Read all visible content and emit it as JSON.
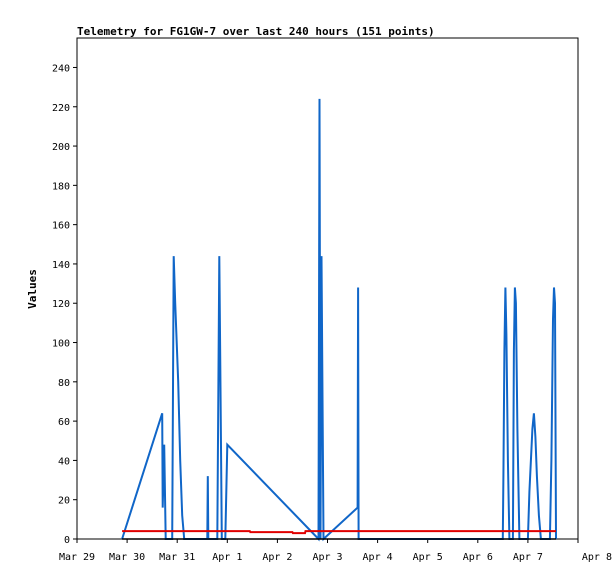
{
  "chart_data": {
    "type": "line",
    "title": "Telemetry for FG1GW-7 over last 240 hours (151 points)",
    "xlabel": "",
    "ylabel": "Values",
    "x_tick_labels": [
      "Mar 29",
      "Mar 30",
      "Mar 31",
      "Apr 1",
      "Apr 2",
      "Apr 3",
      "Apr 4",
      "Apr 5",
      "Apr 6",
      "Apr 7",
      "Apr 8"
    ],
    "xlim_days": [
      0,
      10
    ],
    "ylim": [
      0,
      255
    ],
    "y_ticks": [
      0,
      20,
      40,
      60,
      80,
      100,
      120,
      140,
      160,
      180,
      200,
      220,
      240
    ],
    "grid": false,
    "series": [
      {
        "color": "#1066c8",
        "points": [
          [
            0.9,
            0
          ],
          [
            1.7,
            64
          ],
          [
            1.71,
            16
          ],
          [
            1.74,
            48
          ],
          [
            1.77,
            0
          ],
          [
            1.9,
            0
          ],
          [
            1.93,
            144
          ],
          [
            1.96,
            120
          ],
          [
            1.99,
            100
          ],
          [
            2.02,
            80
          ],
          [
            2.06,
            40
          ],
          [
            2.1,
            12
          ],
          [
            2.14,
            0
          ],
          [
            2.6,
            0
          ],
          [
            2.61,
            32
          ],
          [
            2.62,
            0
          ],
          [
            2.8,
            0
          ],
          [
            2.82,
            72
          ],
          [
            2.84,
            144
          ],
          [
            2.86,
            88
          ],
          [
            2.89,
            0
          ],
          [
            2.93,
            0
          ],
          [
            2.96,
            0
          ],
          [
            3.0,
            48
          ],
          [
            4.82,
            0
          ],
          [
            4.84,
            224
          ],
          [
            4.86,
            0
          ],
          [
            4.88,
            144
          ],
          [
            4.9,
            72
          ],
          [
            4.92,
            0
          ],
          [
            5.6,
            16
          ],
          [
            5.61,
            128
          ],
          [
            5.62,
            0
          ],
          [
            8.5,
            0
          ],
          [
            8.51,
            32
          ],
          [
            8.53,
            96
          ],
          [
            8.55,
            128
          ],
          [
            8.57,
            104
          ],
          [
            8.6,
            40
          ],
          [
            8.63,
            0
          ],
          [
            8.7,
            0
          ],
          [
            8.72,
            96
          ],
          [
            8.74,
            128
          ],
          [
            8.76,
            120
          ],
          [
            8.79,
            56
          ],
          [
            8.83,
            0
          ],
          [
            9.0,
            0
          ],
          [
            9.03,
            24
          ],
          [
            9.06,
            40
          ],
          [
            9.09,
            56
          ],
          [
            9.12,
            64
          ],
          [
            9.15,
            52
          ],
          [
            9.18,
            32
          ],
          [
            9.22,
            12
          ],
          [
            9.26,
            0
          ],
          [
            9.44,
            0
          ],
          [
            9.47,
            40
          ],
          [
            9.5,
            112
          ],
          [
            9.52,
            128
          ],
          [
            9.54,
            120
          ],
          [
            9.56,
            0
          ]
        ]
      },
      {
        "color": "#e00000",
        "points": [
          [
            0.9,
            4
          ],
          [
            3.45,
            4
          ],
          [
            3.46,
            3.5
          ],
          [
            4.3,
            3.5
          ],
          [
            4.31,
            3
          ],
          [
            4.55,
            3
          ],
          [
            4.56,
            4
          ],
          [
            9.56,
            4
          ]
        ]
      },
      {
        "color": "#000000",
        "points": [
          [
            0.9,
            0
          ],
          [
            9.56,
            0
          ]
        ]
      }
    ]
  }
}
